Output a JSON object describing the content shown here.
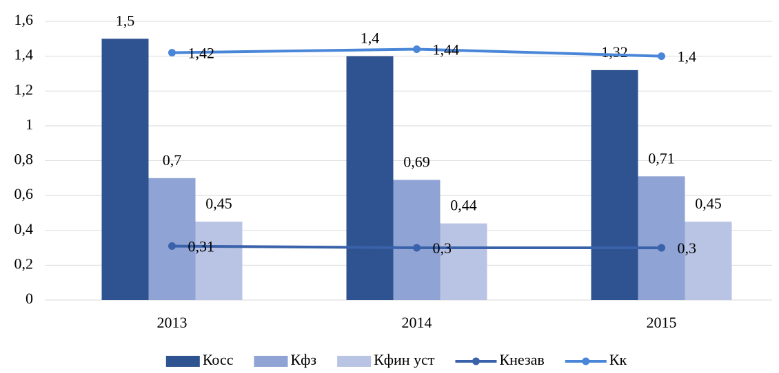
{
  "chart_data": {
    "type": "bar",
    "categories": [
      "2013",
      "2014",
      "2015"
    ],
    "series": [
      {
        "name": "Косс",
        "type": "bar",
        "color": "#2f5391",
        "values": [
          1.5,
          1.4,
          1.32
        ],
        "value_labels": [
          "1,5",
          "1,4",
          "1,32"
        ]
      },
      {
        "name": "Кфз",
        "type": "bar",
        "color": "#8fa3d4",
        "values": [
          0.7,
          0.69,
          0.71
        ],
        "value_labels": [
          "0,7",
          "0,69",
          "0,71"
        ]
      },
      {
        "name": "Кфин уст",
        "type": "bar",
        "color": "#b9c3e3",
        "values": [
          0.45,
          0.44,
          0.45
        ],
        "value_labels": [
          "0,45",
          "0,44",
          "0,45"
        ]
      },
      {
        "name": "Кнезав",
        "type": "line",
        "color": "#3a62aa",
        "values": [
          0.31,
          0.3,
          0.3
        ],
        "value_labels": [
          "0,31",
          "0,3",
          "0,3"
        ]
      },
      {
        "name": "Кк",
        "type": "line",
        "color": "#4a86d8",
        "values": [
          1.42,
          1.44,
          1.4
        ],
        "value_labels": [
          "1,42",
          "1,44",
          "1,4"
        ]
      }
    ],
    "ylim": [
      0,
      1.6
    ],
    "yticks": [
      0,
      {
        "value": 0.2,
        "label": "0,2"
      },
      {
        "value": 0.4,
        "label": "0,4"
      },
      {
        "value": 0.6,
        "label": "0,6"
      },
      {
        "value": 0.8,
        "label": "0,8"
      },
      1,
      {
        "value": 1.2,
        "label": "1,2"
      },
      {
        "value": 1.4,
        "label": "1,4"
      },
      {
        "value": 1.6,
        "label": "1,6"
      }
    ],
    "grid": true,
    "legend": "bottom"
  }
}
